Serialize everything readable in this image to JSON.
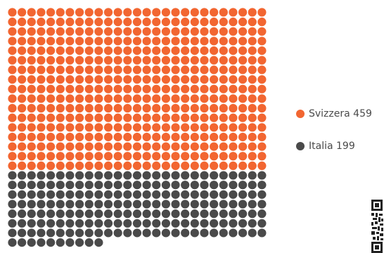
{
  "chart_data": {
    "type": "waffle",
    "title": "",
    "series": [
      {
        "name": "Svizzera",
        "value": 459,
        "color": "#f26631"
      },
      {
        "name": "Italia",
        "value": 199,
        "color": "#4a4a4a"
      }
    ],
    "columns": 27,
    "legend_position": "right"
  },
  "legend": {
    "items": [
      {
        "label": "Svizzera 459",
        "color": "#f26631"
      },
      {
        "label": "Italia 199",
        "color": "#4a4a4a"
      }
    ]
  },
  "icons": {
    "qr": "qr-code-icon"
  }
}
